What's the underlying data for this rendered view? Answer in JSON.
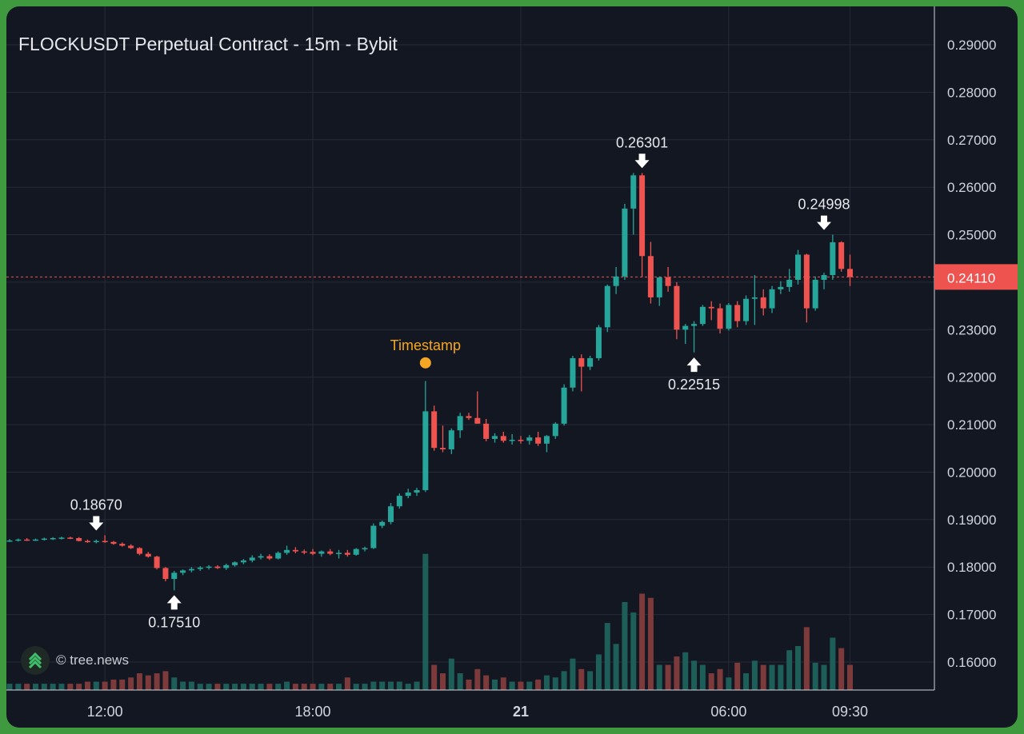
{
  "chart_data": {
    "type": "candlestick",
    "title": "FLOCKUSDT Perpetual Contract - 15m - Bybit",
    "y_ticks": [
      "0.29000",
      "0.28000",
      "0.27000",
      "0.26000",
      "0.25000",
      "0.24000",
      "0.23000",
      "0.22000",
      "0.21000",
      "0.20000",
      "0.19000",
      "0.18000",
      "0.17000",
      "0.16000"
    ],
    "ylim": [
      0.1545,
      0.294
    ],
    "x_ticks": [
      {
        "label": "12:00",
        "bar": 11,
        "bold": false
      },
      {
        "label": "18:00",
        "bar": 35,
        "bold": false
      },
      {
        "label": "21",
        "bar": 59,
        "bold": true
      },
      {
        "label": "06:00",
        "bar": 83,
        "bold": false
      },
      {
        "label": "09:30",
        "bar": 97,
        "bold": false
      }
    ],
    "last_price": {
      "value": 0.2411,
      "label": "0.24110"
    },
    "colors": {
      "up": "#26a69a",
      "down": "#ef5350",
      "up_volume": "#1e5e59",
      "down_volume": "#7d3a3a",
      "annotation": "#f5a623",
      "grid": "#262b37"
    },
    "callouts": [
      {
        "label": "0.18670",
        "bar": 10,
        "value": 0.1867,
        "type": "high"
      },
      {
        "label": "0.17510",
        "bar": 19,
        "value": 0.1751,
        "type": "low"
      },
      {
        "label": "0.26301",
        "bar": 73,
        "value": 0.26301,
        "type": "high"
      },
      {
        "label": "0.22515",
        "bar": 79,
        "value": 0.22515,
        "type": "low"
      },
      {
        "label": "0.24998",
        "bar": 94,
        "value": 0.24998,
        "type": "high"
      }
    ],
    "annotation": {
      "label": "Timestamp",
      "bar": 48,
      "value": 0.222
    },
    "watermark": "© tree.news",
    "candles": [
      [
        0.1856,
        0.1859,
        0.1853,
        0.1856,
        3
      ],
      [
        0.1856,
        0.186,
        0.1854,
        0.1858,
        3
      ],
      [
        0.1858,
        0.1861,
        0.1855,
        0.1857,
        3
      ],
      [
        0.1857,
        0.186,
        0.1855,
        0.1858,
        3
      ],
      [
        0.1858,
        0.1862,
        0.1856,
        0.186,
        3
      ],
      [
        0.186,
        0.1863,
        0.1857,
        0.1861,
        3
      ],
      [
        0.1861,
        0.1864,
        0.1858,
        0.1862,
        3
      ],
      [
        0.1862,
        0.1864,
        0.1859,
        0.1861,
        3
      ],
      [
        0.1861,
        0.1863,
        0.1854,
        0.1855,
        3
      ],
      [
        0.1855,
        0.1858,
        0.1851,
        0.1853,
        4
      ],
      [
        0.1853,
        0.1858,
        0.185,
        0.1855,
        4
      ],
      [
        0.1855,
        0.1867,
        0.1851,
        0.1853,
        4
      ],
      [
        0.1853,
        0.1855,
        0.1847,
        0.1849,
        5
      ],
      [
        0.1849,
        0.1852,
        0.1843,
        0.1845,
        5
      ],
      [
        0.1845,
        0.1848,
        0.1838,
        0.184,
        6
      ],
      [
        0.184,
        0.1842,
        0.1825,
        0.1828,
        8
      ],
      [
        0.1828,
        0.1832,
        0.182,
        0.1822,
        7
      ],
      [
        0.1822,
        0.1824,
        0.1795,
        0.1798,
        8
      ],
      [
        0.1798,
        0.18,
        0.177,
        0.1775,
        9
      ],
      [
        0.1775,
        0.1792,
        0.1751,
        0.1788,
        6
      ],
      [
        0.1788,
        0.1795,
        0.1783,
        0.1793,
        4
      ],
      [
        0.1793,
        0.18,
        0.1789,
        0.1796,
        4
      ],
      [
        0.1796,
        0.1802,
        0.1792,
        0.1799,
        3
      ],
      [
        0.1799,
        0.1804,
        0.1795,
        0.1801,
        3
      ],
      [
        0.1801,
        0.1804,
        0.1796,
        0.1798,
        3
      ],
      [
        0.1798,
        0.1807,
        0.1794,
        0.1804,
        3
      ],
      [
        0.1804,
        0.1812,
        0.1801,
        0.181,
        3
      ],
      [
        0.181,
        0.1817,
        0.1806,
        0.1814,
        3
      ],
      [
        0.1814,
        0.1825,
        0.181,
        0.182,
        3
      ],
      [
        0.182,
        0.1828,
        0.1816,
        0.1823,
        3
      ],
      [
        0.1823,
        0.1827,
        0.1815,
        0.1818,
        3
      ],
      [
        0.1818,
        0.1833,
        0.1816,
        0.183,
        3
      ],
      [
        0.183,
        0.1845,
        0.1826,
        0.1836,
        4
      ],
      [
        0.1836,
        0.1842,
        0.1829,
        0.1833,
        3
      ],
      [
        0.1833,
        0.1837,
        0.1827,
        0.1832,
        3
      ],
      [
        0.1832,
        0.1838,
        0.1825,
        0.1828,
        3
      ],
      [
        0.1828,
        0.1835,
        0.1822,
        0.1833,
        3
      ],
      [
        0.1833,
        0.1838,
        0.1825,
        0.1828,
        3
      ],
      [
        0.1828,
        0.1836,
        0.1818,
        0.183,
        3
      ],
      [
        0.183,
        0.1836,
        0.1822,
        0.1826,
        6
      ],
      [
        0.1826,
        0.184,
        0.1824,
        0.1838,
        3
      ],
      [
        0.1838,
        0.1843,
        0.1833,
        0.184,
        3
      ],
      [
        0.184,
        0.1892,
        0.1838,
        0.1887,
        4
      ],
      [
        0.1887,
        0.1898,
        0.1882,
        0.1895,
        4
      ],
      [
        0.1895,
        0.1935,
        0.189,
        0.1928,
        4
      ],
      [
        0.1928,
        0.1955,
        0.1923,
        0.195,
        4
      ],
      [
        0.195,
        0.1965,
        0.1945,
        0.1957,
        3
      ],
      [
        0.1957,
        0.1967,
        0.195,
        0.1962,
        4
      ],
      [
        0.1962,
        0.2192,
        0.1958,
        0.2128,
        65
      ],
      [
        0.2128,
        0.214,
        0.2045,
        0.2051,
        12
      ],
      [
        0.2051,
        0.2098,
        0.2042,
        0.2048,
        8
      ],
      [
        0.2048,
        0.2092,
        0.2038,
        0.2088,
        15
      ],
      [
        0.2088,
        0.2125,
        0.2072,
        0.2118,
        8
      ],
      [
        0.2118,
        0.2125,
        0.211,
        0.2114,
        5
      ],
      [
        0.2114,
        0.217,
        0.2102,
        0.2102,
        10
      ],
      [
        0.2102,
        0.2112,
        0.2065,
        0.207,
        7
      ],
      [
        0.207,
        0.2082,
        0.2062,
        0.2076,
        5
      ],
      [
        0.2076,
        0.2085,
        0.2062,
        0.2066,
        6
      ],
      [
        0.2066,
        0.208,
        0.2058,
        0.2068,
        4
      ],
      [
        0.2068,
        0.2076,
        0.206,
        0.2066,
        4
      ],
      [
        0.2066,
        0.2078,
        0.2058,
        0.2073,
        4
      ],
      [
        0.2073,
        0.2085,
        0.2055,
        0.206,
        5
      ],
      [
        0.206,
        0.2078,
        0.2042,
        0.2076,
        7
      ],
      [
        0.2076,
        0.2105,
        0.207,
        0.2102,
        6
      ],
      [
        0.2102,
        0.2185,
        0.2098,
        0.2178,
        9
      ],
      [
        0.2178,
        0.2245,
        0.217,
        0.224,
        15
      ],
      [
        0.224,
        0.2248,
        0.217,
        0.2222,
        10
      ],
      [
        0.2222,
        0.2245,
        0.2215,
        0.224,
        9
      ],
      [
        0.224,
        0.231,
        0.2235,
        0.2305,
        17
      ],
      [
        0.2305,
        0.2395,
        0.2295,
        0.2392,
        32
      ],
      [
        0.2392,
        0.2432,
        0.2375,
        0.2412,
        22
      ],
      [
        0.2412,
        0.2565,
        0.2405,
        0.2555,
        42
      ],
      [
        0.2555,
        0.263,
        0.25,
        0.2625,
        37
      ],
      [
        0.2625,
        0.263,
        0.241,
        0.2455,
        46
      ],
      [
        0.2455,
        0.2485,
        0.2355,
        0.2368,
        44
      ],
      [
        0.2368,
        0.2412,
        0.235,
        0.241,
        12
      ],
      [
        0.241,
        0.2432,
        0.238,
        0.2392,
        12
      ],
      [
        0.2392,
        0.24,
        0.228,
        0.23,
        16
      ],
      [
        0.23,
        0.2312,
        0.227,
        0.2308,
        18
      ],
      [
        0.2308,
        0.2318,
        0.2252,
        0.2312,
        14
      ],
      [
        0.2312,
        0.2352,
        0.2308,
        0.2348,
        12
      ],
      [
        0.2348,
        0.236,
        0.232,
        0.2345,
        8
      ],
      [
        0.2345,
        0.2355,
        0.2292,
        0.2302,
        10
      ],
      [
        0.2302,
        0.2356,
        0.2298,
        0.2352,
        6
      ],
      [
        0.2352,
        0.236,
        0.2305,
        0.2318,
        13
      ],
      [
        0.2318,
        0.2372,
        0.231,
        0.2365,
        8
      ],
      [
        0.2365,
        0.2415,
        0.231,
        0.2368,
        14
      ],
      [
        0.2368,
        0.2385,
        0.233,
        0.2345,
        12
      ],
      [
        0.2345,
        0.2392,
        0.2335,
        0.2385,
        12
      ],
      [
        0.2385,
        0.2402,
        0.2375,
        0.239,
        12
      ],
      [
        0.239,
        0.2428,
        0.238,
        0.2405,
        19
      ],
      [
        0.2405,
        0.2468,
        0.2395,
        0.2458,
        21
      ],
      [
        0.2458,
        0.246,
        0.2315,
        0.2345,
        30
      ],
      [
        0.2345,
        0.2412,
        0.234,
        0.2405,
        13
      ],
      [
        0.2405,
        0.242,
        0.2385,
        0.2415,
        12
      ],
      [
        0.2415,
        0.25,
        0.2405,
        0.2484,
        25
      ],
      [
        0.2484,
        0.2486,
        0.2422,
        0.2428,
        20
      ],
      [
        0.2428,
        0.2458,
        0.2392,
        0.2411,
        12
      ]
    ]
  }
}
